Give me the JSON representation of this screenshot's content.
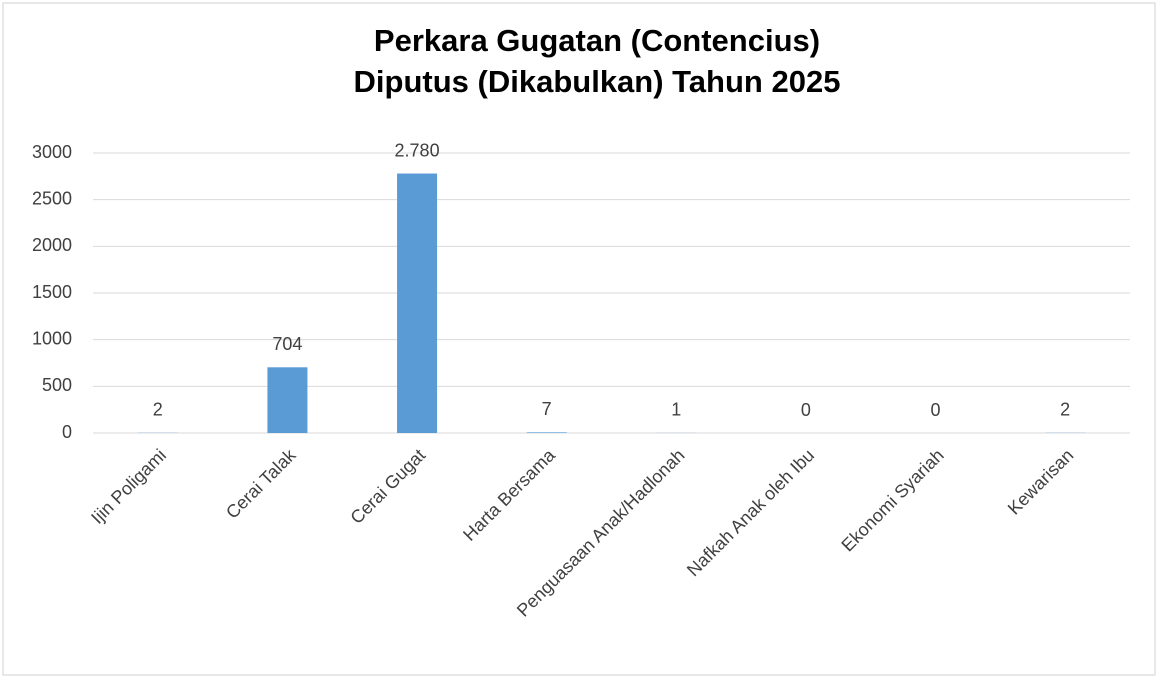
{
  "chart_data": {
    "type": "bar",
    "title": [
      "Perkara Gugatan (Contencius)",
      "Diputus (Dikabulkan) Tahun 2025"
    ],
    "categories": [
      "Ijin Poligami",
      "Cerai Talak",
      "Cerai Gugat",
      "Harta Bersama",
      "Penguasaan Anak/Hadlonah",
      "Nafkah Anak oleh Ibu",
      "Ekonomi Syariah",
      "Kewarisan"
    ],
    "values": [
      2,
      704,
      2780,
      7,
      1,
      0,
      0,
      2
    ],
    "value_labels": [
      "2",
      "704",
      "2.780",
      "7",
      "1",
      "0",
      "0",
      "2"
    ],
    "color": "#5b9bd5",
    "ylim": [
      0,
      3000
    ],
    "yticks": [
      0,
      500,
      1000,
      1500,
      2000,
      2500,
      3000
    ],
    "grid": true
  }
}
